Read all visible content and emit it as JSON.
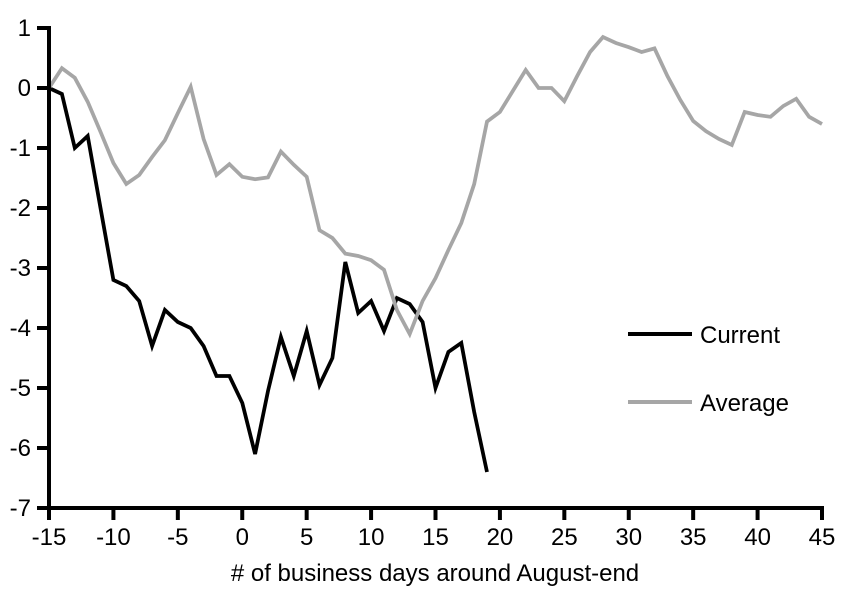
{
  "chart_data": {
    "type": "line",
    "title": "",
    "xlabel": "# of business days around August-end",
    "ylabel": "",
    "xlim": [
      -15,
      45
    ],
    "ylim": [
      -7,
      1
    ],
    "x_ticks": [
      -15,
      -10,
      -5,
      0,
      5,
      10,
      15,
      20,
      25,
      30,
      35,
      40,
      45
    ],
    "y_ticks": [
      1,
      0,
      -1,
      -2,
      -3,
      -4,
      -5,
      -6,
      -7
    ],
    "grid": false,
    "legend_position": "right-middle",
    "axis_color": "#000000",
    "series": [
      {
        "name": "Current",
        "color": "#000000",
        "x": [
          -15,
          -14,
          -13,
          -12,
          -11,
          -10,
          -9,
          -8,
          -7,
          -6,
          -5,
          -4,
          -3,
          -2,
          -1,
          0,
          1,
          2,
          3,
          4,
          5,
          6,
          7,
          8,
          9,
          10,
          11,
          12,
          13,
          14,
          15,
          16,
          17,
          18,
          19
        ],
        "values": [
          0.0,
          -0.1,
          -1.0,
          -0.8,
          -2.0,
          -3.2,
          -3.3,
          -3.55,
          -4.3,
          -3.7,
          -3.9,
          -4.0,
          -4.3,
          -4.8,
          -4.8,
          -5.25,
          -6.1,
          -5.05,
          -4.15,
          -4.8,
          -4.05,
          -4.95,
          -4.5,
          -2.9,
          -3.75,
          -3.55,
          -4.05,
          -3.5,
          -3.6,
          -3.9,
          -5.0,
          -4.4,
          -4.25,
          -5.4,
          -6.4
        ]
      },
      {
        "name": "Average",
        "color": "#a6a6a6",
        "x": [
          -15,
          -14,
          -13,
          -12,
          -11,
          -10,
          -9,
          -8,
          -7,
          -6,
          -5,
          -4,
          -3,
          -2,
          -1,
          0,
          1,
          2,
          3,
          4,
          5,
          6,
          7,
          8,
          9,
          10,
          11,
          12,
          13,
          14,
          15,
          16,
          17,
          18,
          19,
          20,
          21,
          22,
          23,
          24,
          25,
          26,
          27,
          28,
          29,
          30,
          31,
          32,
          33,
          34,
          35,
          36,
          37,
          38,
          39,
          40,
          41,
          42,
          43,
          44,
          45
        ],
        "values": [
          0.0,
          0.33,
          0.17,
          -0.23,
          -0.73,
          -1.25,
          -1.6,
          -1.45,
          -1.15,
          -0.87,
          -0.42,
          0.02,
          -0.85,
          -1.45,
          -1.27,
          -1.48,
          -1.52,
          -1.49,
          -1.06,
          -1.28,
          -1.48,
          -2.37,
          -2.5,
          -2.76,
          -2.8,
          -2.87,
          -3.03,
          -3.7,
          -4.1,
          -3.55,
          -3.17,
          -2.7,
          -2.25,
          -1.6,
          -0.56,
          -0.4,
          -0.05,
          0.3,
          0.0,
          0.0,
          -0.22,
          0.2,
          0.6,
          0.85,
          0.75,
          0.68,
          0.6,
          0.66,
          0.2,
          -0.2,
          -0.55,
          -0.72,
          -0.85,
          -0.95,
          -0.4,
          -0.45,
          -0.48,
          -0.3,
          -0.18,
          -0.48,
          -0.6
        ]
      }
    ]
  },
  "legend": {
    "items": [
      {
        "label": "Current",
        "color": "#000000"
      },
      {
        "label": "Average",
        "color": "#a6a6a6"
      }
    ]
  }
}
